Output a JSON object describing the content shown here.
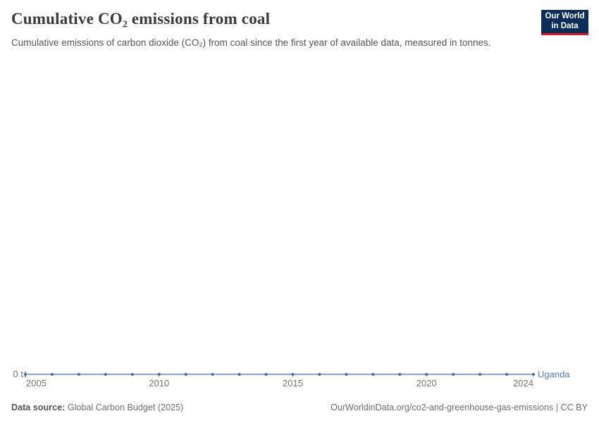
{
  "header": {
    "title": "Cumulative CO₂ emissions from coal",
    "subtitle": "Cumulative emissions of carbon dioxide (CO₂) from coal since the first year of available data, measured in tonnes.",
    "logo": {
      "line1": "Our World",
      "line2": "in Data"
    }
  },
  "chart_data": {
    "type": "line",
    "title": "Cumulative CO₂ emissions from coal",
    "xlabel": "",
    "ylabel": "",
    "xlim": [
      2005,
      2024
    ],
    "x_ticks": [
      2005,
      2010,
      2015,
      2020,
      2024
    ],
    "y_ticks": [
      {
        "value": 0,
        "label": "0 t"
      }
    ],
    "grid": false,
    "legend_position": "end-of-line",
    "series": [
      {
        "name": "Uganda",
        "color": "#4C6A9C",
        "line_color": "#8CA4CE",
        "label_color": "#5878B4",
        "x": [
          2005,
          2006,
          2007,
          2008,
          2009,
          2010,
          2011,
          2012,
          2013,
          2014,
          2015,
          2016,
          2017,
          2018,
          2019,
          2020,
          2021,
          2022,
          2023,
          2024
        ],
        "values": [
          0,
          0,
          0,
          0,
          0,
          0,
          0,
          0,
          0,
          0,
          0,
          0,
          0,
          0,
          0,
          0,
          0,
          0,
          0,
          0
        ]
      }
    ],
    "tick_mark_color": "#b3b3b3"
  },
  "footer": {
    "source_label": "Data source:",
    "source_value": "Global Carbon Budget (2025)",
    "attribution": "OurWorldinData.org/co2-and-greenhouse-gas-emissions | CC BY"
  },
  "colors": {
    "logo_bg": "#0d2d59",
    "logo_red": "#cd2026",
    "title_text": "#3a3a3a",
    "subtitle_text": "#575757",
    "tick_text": "#757575",
    "footer_text": "#6e6e6e"
  }
}
